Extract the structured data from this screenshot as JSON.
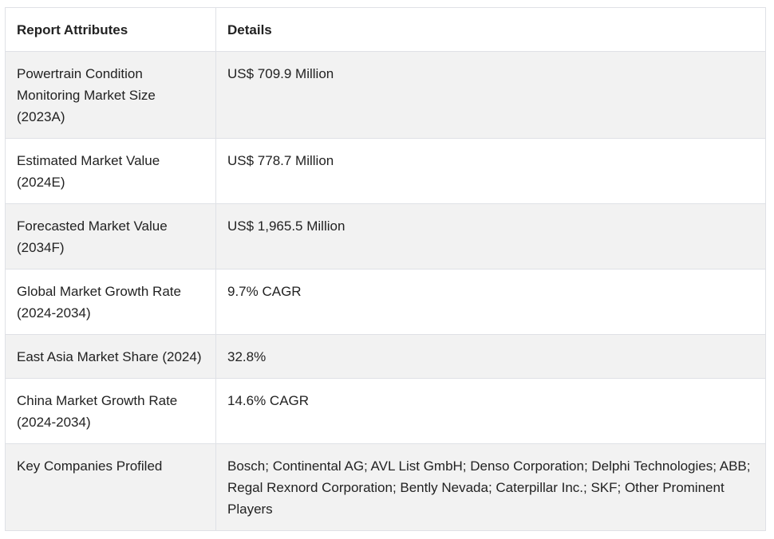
{
  "table": {
    "headers": [
      "Report Attributes",
      "Details"
    ],
    "rows": [
      [
        "Powertrain Condition Monitoring Market Size (2023A)",
        "US$ 709.9 Million"
      ],
      [
        "Estimated Market Value (2024E)",
        "US$ 778.7 Million"
      ],
      [
        "Forecasted Market Value (2034F)",
        "US$ 1,965.5 Million"
      ],
      [
        "Global Market Growth Rate (2024-2034)",
        "9.7% CAGR"
      ],
      [
        "East Asia Market Share (2024)",
        "32.8%"
      ],
      [
        "China Market Growth Rate (2024-2034)",
        "14.6% CAGR"
      ],
      [
        "Key Companies Profiled",
        "Bosch; Continental AG; AVL List GmbH; Denso Corporation; Delphi Technologies; ABB; Regal Rexnord Corporation; Bently Nevada; Caterpillar Inc.; SKF; Other Prominent Players"
      ]
    ]
  }
}
